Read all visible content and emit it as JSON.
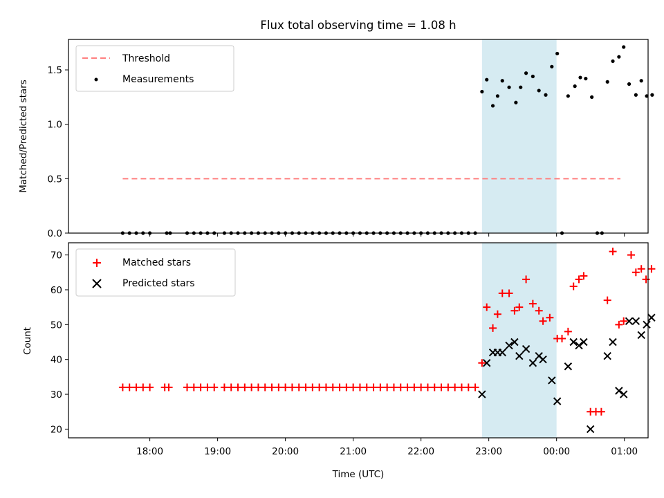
{
  "chart_data": {
    "title": "Flux total observing time = 1.08 h",
    "x_range_hours": [
      16.8,
      25.35
    ],
    "shaded_span_hours": [
      22.9,
      24.0
    ],
    "shade_color": "#add8e6",
    "top": {
      "type": "scatter",
      "ylabel": "Matched/Predicted stars",
      "ylim": [
        0,
        1.78
      ],
      "yticks": [
        "0.0",
        "0.5",
        "1.0",
        "1.5"
      ],
      "ytick_values": [
        0,
        0.5,
        1.0,
        1.5
      ],
      "legend": {
        "placement": "top-left",
        "entries": [
          "Threshold",
          "Measurements"
        ]
      },
      "threshold": {
        "name": "Threshold",
        "value": 0.5,
        "x_range": [
          17.6,
          25.35
        ],
        "color": "#ff7f7f",
        "style": "dashed"
      },
      "measurements": {
        "name": "Measurements",
        "color": "#000000",
        "points": [
          [
            17.6,
            0
          ],
          [
            17.7,
            0
          ],
          [
            17.8,
            0
          ],
          [
            17.9,
            0
          ],
          [
            18.0,
            0
          ],
          [
            18.25,
            0
          ],
          [
            18.3,
            0
          ],
          [
            18.55,
            0
          ],
          [
            18.65,
            0
          ],
          [
            18.75,
            0
          ],
          [
            18.85,
            0
          ],
          [
            18.95,
            0
          ],
          [
            19.1,
            0
          ],
          [
            19.2,
            0
          ],
          [
            19.3,
            0
          ],
          [
            19.4,
            0
          ],
          [
            19.5,
            0
          ],
          [
            19.6,
            0
          ],
          [
            19.7,
            0
          ],
          [
            19.8,
            0
          ],
          [
            19.9,
            0
          ],
          [
            20.0,
            0
          ],
          [
            20.1,
            0
          ],
          [
            20.2,
            0
          ],
          [
            20.3,
            0
          ],
          [
            20.4,
            0
          ],
          [
            20.5,
            0
          ],
          [
            20.6,
            0
          ],
          [
            20.7,
            0
          ],
          [
            20.8,
            0
          ],
          [
            20.9,
            0
          ],
          [
            21.0,
            0
          ],
          [
            21.1,
            0
          ],
          [
            21.2,
            0
          ],
          [
            21.3,
            0
          ],
          [
            21.4,
            0
          ],
          [
            21.5,
            0
          ],
          [
            21.6,
            0
          ],
          [
            21.7,
            0
          ],
          [
            21.8,
            0
          ],
          [
            21.9,
            0
          ],
          [
            22.0,
            0
          ],
          [
            22.1,
            0
          ],
          [
            22.2,
            0
          ],
          [
            22.3,
            0
          ],
          [
            22.4,
            0
          ],
          [
            22.5,
            0
          ],
          [
            22.6,
            0
          ],
          [
            22.7,
            0
          ],
          [
            22.8,
            0
          ],
          [
            22.9,
            1.3
          ],
          [
            22.97,
            1.41
          ],
          [
            23.06,
            1.17
          ],
          [
            23.13,
            1.26
          ],
          [
            23.2,
            1.4
          ],
          [
            23.3,
            1.34
          ],
          [
            23.4,
            1.2
          ],
          [
            23.47,
            1.34
          ],
          [
            23.55,
            1.47
          ],
          [
            23.65,
            1.44
          ],
          [
            23.74,
            1.31
          ],
          [
            23.84,
            1.27
          ],
          [
            23.93,
            1.53
          ],
          [
            24.01,
            1.65
          ],
          [
            24.08,
            0
          ],
          [
            24.17,
            1.26
          ],
          [
            24.27,
            1.35
          ],
          [
            24.35,
            1.43
          ],
          [
            24.43,
            1.42
          ],
          [
            24.52,
            1.25
          ],
          [
            24.6,
            0
          ],
          [
            24.67,
            0
          ],
          [
            24.75,
            1.39
          ],
          [
            24.83,
            1.58
          ],
          [
            24.92,
            1.62
          ],
          [
            24.99,
            1.71
          ],
          [
            25.07,
            1.37
          ],
          [
            25.17,
            1.27
          ],
          [
            25.25,
            1.4
          ],
          [
            25.33,
            1.26
          ],
          [
            25.41,
            1.27
          ]
        ]
      }
    },
    "bottom": {
      "type": "scatter",
      "ylabel": "Count",
      "xlabel": "Time (UTC)",
      "ylim": [
        17.5,
        73.5
      ],
      "yticks": [
        "20",
        "30",
        "40",
        "50",
        "60",
        "70"
      ],
      "ytick_values": [
        20,
        30,
        40,
        50,
        60,
        70
      ],
      "xticks": [
        "18:00",
        "19:00",
        "20:00",
        "21:00",
        "22:00",
        "23:00",
        "00:00",
        "01:00"
      ],
      "xtick_values": [
        18,
        19,
        20,
        21,
        22,
        23,
        24,
        25
      ],
      "legend": {
        "placement": "top-left",
        "entries": [
          "Matched stars",
          "Predicted stars"
        ]
      },
      "series": [
        {
          "name": "Matched stars",
          "marker": "plus",
          "color": "#ff0000",
          "points": [
            [
              17.6,
              32
            ],
            [
              17.7,
              32
            ],
            [
              17.8,
              32
            ],
            [
              17.9,
              32
            ],
            [
              18.0,
              32
            ],
            [
              18.22,
              32
            ],
            [
              18.28,
              32
            ],
            [
              18.55,
              32
            ],
            [
              18.65,
              32
            ],
            [
              18.75,
              32
            ],
            [
              18.85,
              32
            ],
            [
              18.95,
              32
            ],
            [
              19.1,
              32
            ],
            [
              19.2,
              32
            ],
            [
              19.3,
              32
            ],
            [
              19.4,
              32
            ],
            [
              19.5,
              32
            ],
            [
              19.6,
              32
            ],
            [
              19.7,
              32
            ],
            [
              19.8,
              32
            ],
            [
              19.9,
              32
            ],
            [
              20.0,
              32
            ],
            [
              20.1,
              32
            ],
            [
              20.2,
              32
            ],
            [
              20.3,
              32
            ],
            [
              20.4,
              32
            ],
            [
              20.5,
              32
            ],
            [
              20.6,
              32
            ],
            [
              20.7,
              32
            ],
            [
              20.8,
              32
            ],
            [
              20.9,
              32
            ],
            [
              21.0,
              32
            ],
            [
              21.1,
              32
            ],
            [
              21.2,
              32
            ],
            [
              21.3,
              32
            ],
            [
              21.4,
              32
            ],
            [
              21.5,
              32
            ],
            [
              21.6,
              32
            ],
            [
              21.7,
              32
            ],
            [
              21.8,
              32
            ],
            [
              21.9,
              32
            ],
            [
              22.0,
              32
            ],
            [
              22.1,
              32
            ],
            [
              22.2,
              32
            ],
            [
              22.3,
              32
            ],
            [
              22.4,
              32
            ],
            [
              22.5,
              32
            ],
            [
              22.6,
              32
            ],
            [
              22.7,
              32
            ],
            [
              22.8,
              32
            ],
            [
              22.9,
              39
            ],
            [
              22.97,
              55
            ],
            [
              23.06,
              49
            ],
            [
              23.13,
              53
            ],
            [
              23.2,
              59
            ],
            [
              23.3,
              59
            ],
            [
              23.38,
              54
            ],
            [
              23.45,
              55
            ],
            [
              23.55,
              63
            ],
            [
              23.65,
              56
            ],
            [
              23.74,
              54
            ],
            [
              23.8,
              51
            ],
            [
              23.9,
              52
            ],
            [
              24.01,
              46
            ],
            [
              24.08,
              46
            ],
            [
              24.17,
              48
            ],
            [
              24.25,
              61
            ],
            [
              24.33,
              63
            ],
            [
              24.4,
              64
            ],
            [
              24.5,
              25
            ],
            [
              24.58,
              25
            ],
            [
              24.66,
              25
            ],
            [
              24.75,
              57
            ],
            [
              24.83,
              71
            ],
            [
              24.92,
              50
            ],
            [
              24.99,
              51
            ],
            [
              25.1,
              70
            ],
            [
              25.17,
              65
            ],
            [
              25.25,
              66
            ],
            [
              25.32,
              63
            ],
            [
              25.4,
              66
            ]
          ]
        },
        {
          "name": "Predicted stars",
          "marker": "x",
          "color": "#000000",
          "points": [
            [
              22.9,
              30
            ],
            [
              22.97,
              39
            ],
            [
              23.06,
              42
            ],
            [
              23.13,
              42
            ],
            [
              23.2,
              42
            ],
            [
              23.3,
              44
            ],
            [
              23.38,
              45
            ],
            [
              23.45,
              41
            ],
            [
              23.55,
              43
            ],
            [
              23.65,
              39
            ],
            [
              23.74,
              41
            ],
            [
              23.8,
              40
            ],
            [
              23.93,
              34
            ],
            [
              24.01,
              28
            ],
            [
              24.17,
              38
            ],
            [
              24.25,
              45
            ],
            [
              24.33,
              44
            ],
            [
              24.4,
              45
            ],
            [
              24.5,
              20
            ],
            [
              24.75,
              41
            ],
            [
              24.83,
              45
            ],
            [
              24.92,
              31
            ],
            [
              24.99,
              30
            ],
            [
              25.07,
              51
            ],
            [
              25.17,
              51
            ],
            [
              25.25,
              47
            ],
            [
              25.33,
              50
            ],
            [
              25.4,
              52
            ]
          ]
        }
      ]
    }
  }
}
